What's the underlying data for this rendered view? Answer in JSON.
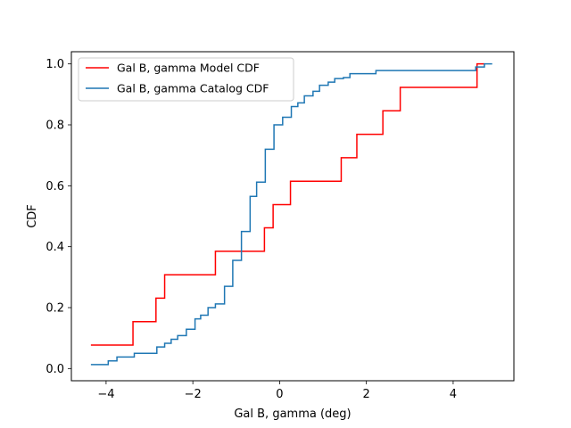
{
  "chart_data": {
    "type": "line",
    "title": "",
    "xlabel": "Gal B, gamma (deg)",
    "ylabel": "CDF",
    "xlim": [
      -4.8,
      5.4
    ],
    "ylim": [
      -0.04,
      1.04
    ],
    "xticks": [
      -4,
      -2,
      0,
      2,
      4
    ],
    "xtick_labels": [
      "−4",
      "−2",
      "0",
      "2",
      "4"
    ],
    "yticks": [
      0.0,
      0.2,
      0.4,
      0.6,
      0.8,
      1.0
    ],
    "ytick_labels": [
      "0.0",
      "0.2",
      "0.4",
      "0.6",
      "0.8",
      "1.0"
    ],
    "grid": false,
    "legend_position": "top-left",
    "step": "post",
    "series": [
      {
        "name": "Gal B, gamma Model CDF",
        "color": "#ff0000",
        "x": [
          -4.35,
          -3.38,
          -2.85,
          -2.65,
          -1.48,
          -0.35,
          -0.15,
          0.25,
          1.42,
          1.78,
          2.38,
          2.78,
          4.55,
          4.72
        ],
        "y": [
          0.077,
          0.154,
          0.231,
          0.308,
          0.385,
          0.462,
          0.538,
          0.615,
          0.692,
          0.769,
          0.846,
          0.923,
          1.0,
          1.0
        ]
      },
      {
        "name": "Gal B, gamma Catalog CDF",
        "color": "#1f77b4",
        "x": [
          -4.35,
          -3.95,
          -3.75,
          -3.35,
          -2.83,
          -2.65,
          -2.5,
          -2.35,
          -2.15,
          -1.95,
          -1.82,
          -1.65,
          -1.48,
          -1.27,
          -1.08,
          -0.88,
          -0.68,
          -0.53,
          -0.33,
          -0.13,
          0.07,
          0.27,
          0.42,
          0.57,
          0.77,
          0.92,
          1.12,
          1.27,
          1.47,
          1.62,
          2.22,
          2.37,
          4.52,
          4.72,
          4.9
        ],
        "y": [
          0.013,
          0.025,
          0.038,
          0.05,
          0.071,
          0.083,
          0.096,
          0.108,
          0.129,
          0.163,
          0.175,
          0.2,
          0.212,
          0.27,
          0.355,
          0.45,
          0.565,
          0.612,
          0.72,
          0.8,
          0.825,
          0.86,
          0.872,
          0.895,
          0.91,
          0.93,
          0.94,
          0.952,
          0.955,
          0.968,
          0.978,
          0.978,
          0.99,
          1.0,
          1.0
        ]
      }
    ]
  }
}
